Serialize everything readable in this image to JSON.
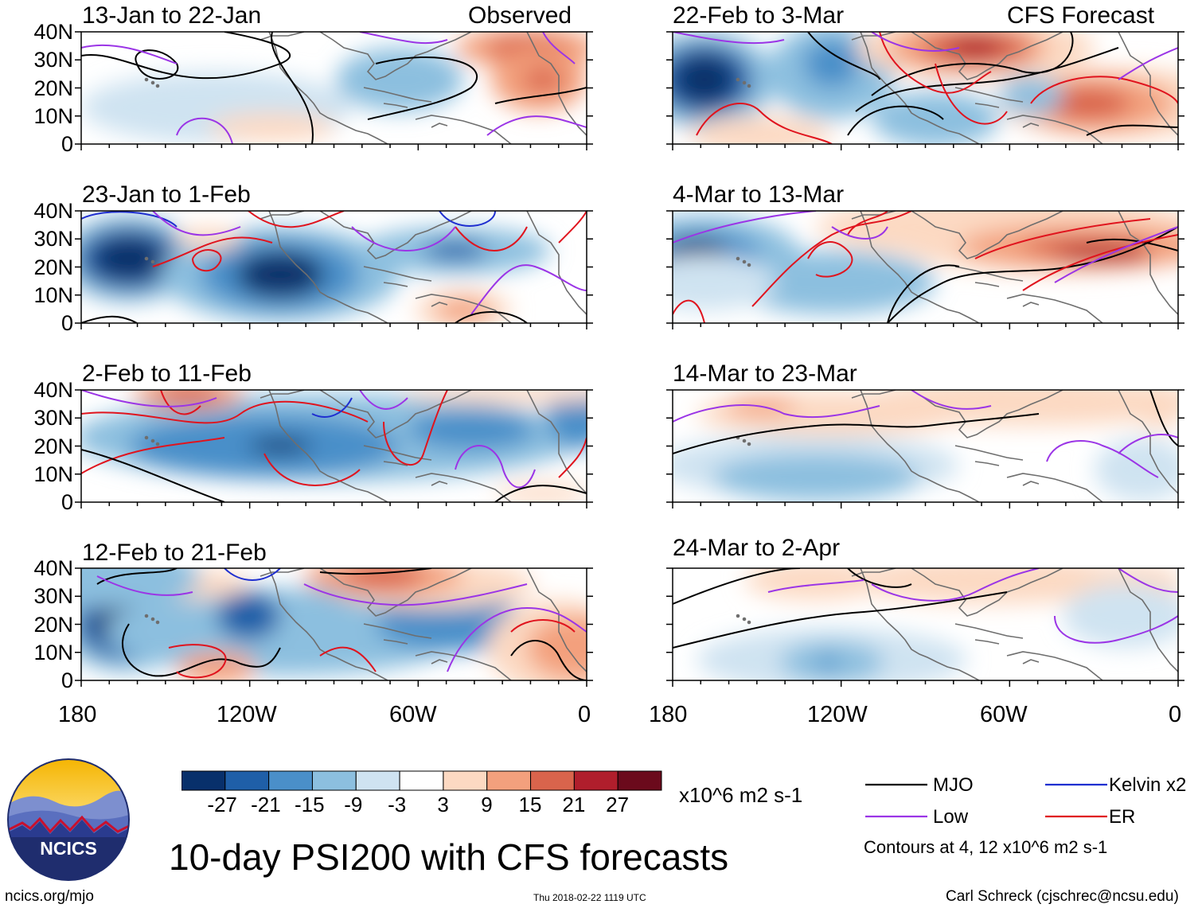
{
  "panels": [
    {
      "title": "13-Jan to 22-Jan",
      "tag": "Observed"
    },
    {
      "title": "23-Jan to 1-Feb",
      "tag": ""
    },
    {
      "title": "2-Feb to 11-Feb",
      "tag": ""
    },
    {
      "title": "12-Feb to 21-Feb",
      "tag": ""
    },
    {
      "title": "22-Feb to 3-Mar",
      "tag": "CFS Forecast"
    },
    {
      "title": "4-Mar to 13-Mar",
      "tag": ""
    },
    {
      "title": "14-Mar to 23-Mar",
      "tag": ""
    },
    {
      "title": "24-Mar to 2-Apr",
      "tag": ""
    }
  ],
  "lat_labels": [
    "40N",
    "30N",
    "20N",
    "10N",
    "0"
  ],
  "lon_labels": [
    "180",
    "120W",
    "60W",
    "0"
  ],
  "colorbar": {
    "ticks": [
      "-27",
      "-21",
      "-15",
      "-9",
      "-3",
      "3",
      "9",
      "15",
      "21",
      "27"
    ],
    "units": "x10^6 m2 s-1",
    "colors": [
      "#08306b",
      "#1f5fa8",
      "#4a8fc9",
      "#8cbfdf",
      "#cfe3f1",
      "#ffffff",
      "#fcd9c2",
      "#f3a07d",
      "#d9644c",
      "#b01e2c",
      "#6b0a1c"
    ]
  },
  "legend": {
    "items": [
      {
        "label": "MJO",
        "color": "#000000"
      },
      {
        "label": "Kelvin x2",
        "color": "#1f2fd0"
      },
      {
        "label": "Low",
        "color": "#9b35e6"
      },
      {
        "label": "ER",
        "color": "#e0141e"
      }
    ],
    "note": "Contours at 4, 12 x10^6 m2 s-1"
  },
  "title": "10-day PSI200 with CFS forecasts",
  "logo_text": "NCICS",
  "footer": {
    "left": "ncics.org/mjo",
    "mid": "Thu 2018-02-22 1119 UTC",
    "right": "Carl Schreck (cjschrec@ncsu.edu)"
  }
}
